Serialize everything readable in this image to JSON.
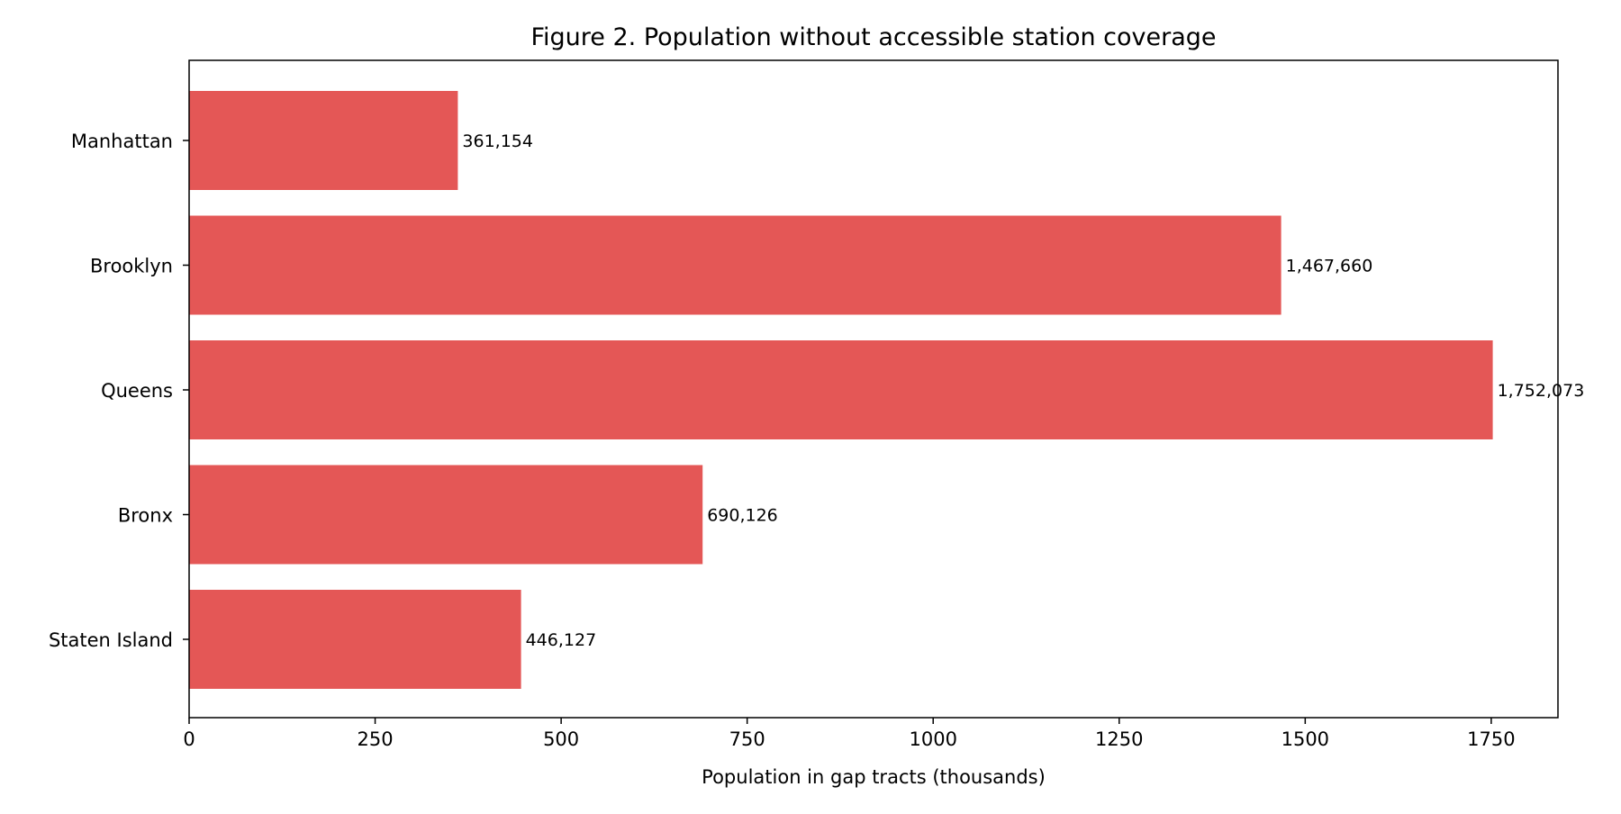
{
  "chart_data": {
    "type": "bar",
    "orientation": "horizontal",
    "title": "Figure 2. Population without accessible station coverage",
    "xlabel": "Population in gap tracts (thousands)",
    "ylabel": "",
    "categories": [
      "Manhattan",
      "Brooklyn",
      "Queens",
      "Bronx",
      "Staten Island"
    ],
    "values": [
      361.154,
      1467.66,
      1752.073,
      690.126,
      446.127
    ],
    "data_labels": [
      "361,154",
      "1,467,660",
      "1,752,073",
      "690,126",
      "446,127"
    ],
    "xlim": [
      0,
      1839.7
    ],
    "xticks": [
      0,
      250,
      500,
      750,
      1000,
      1250,
      1500,
      1750
    ],
    "xtick_labels": [
      "0",
      "250",
      "500",
      "750",
      "1000",
      "1250",
      "1500",
      "1750"
    ],
    "grid": false,
    "bar_color": "#e45756"
  }
}
